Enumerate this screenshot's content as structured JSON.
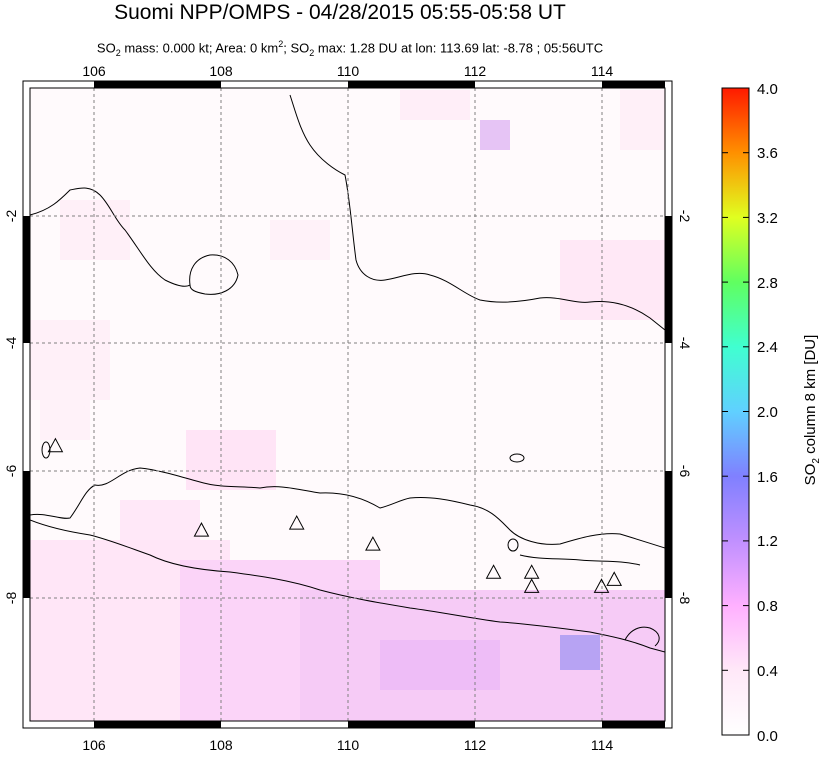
{
  "header": {
    "title": "Suomi NPP/OMPS - 04/28/2015 05:55-05:58 UT",
    "subtitle_parts": [
      "SO",
      "2",
      " mass: 0.000 kt; Area: 0 km",
      "2",
      "; SO",
      "2",
      " max: 1.28 DU at lon: 113.69 lat: -8.78 ; 05:56UTC"
    ]
  },
  "map": {
    "lon_range": [
      105,
      115
    ],
    "lat_range": [
      -10,
      -1
    ],
    "lon_ticks": [
      "106",
      "108",
      "110",
      "112",
      "114"
    ],
    "lat_ticks": [
      "-2",
      "-4",
      "-6",
      "-8"
    ],
    "grid": "dashed",
    "land_color": "#ffffff",
    "coast_color": "#000000"
  },
  "colorbar": {
    "label_parts": [
      "SO",
      "2",
      " column 8 km [DU]"
    ],
    "ticks": [
      "4.0",
      "3.6",
      "3.2",
      "2.8",
      "2.4",
      "2.0",
      "1.6",
      "1.2",
      "0.8",
      "0.4",
      "0.0"
    ],
    "colors": [
      "#ff2000",
      "#ff8000",
      "#ffe000",
      "#80ff40",
      "#40ffd0",
      "#60c0ff",
      "#8080ff",
      "#c080ff",
      "#ffb0ff",
      "#fff0f8",
      "#ffffff"
    ]
  },
  "volcanoes": [
    {
      "name": "volcano-1",
      "lon": 105.4,
      "lat": -6.1
    },
    {
      "name": "volcano-2",
      "lon": 107.7,
      "lat": -7.3
    },
    {
      "name": "volcano-3",
      "lon": 109.2,
      "lat": -7.2
    },
    {
      "name": "volcano-4",
      "lon": 110.4,
      "lat": -7.5
    },
    {
      "name": "volcano-5",
      "lon": 112.3,
      "lat": -7.9
    },
    {
      "name": "volcano-6",
      "lon": 112.9,
      "lat": -7.9
    },
    {
      "name": "volcano-7",
      "lon": 112.9,
      "lat": -8.1
    },
    {
      "name": "volcano-8",
      "lon": 114.0,
      "lat": -8.1
    },
    {
      "name": "volcano-9",
      "lon": 114.2,
      "lat": -8.0
    }
  ]
}
